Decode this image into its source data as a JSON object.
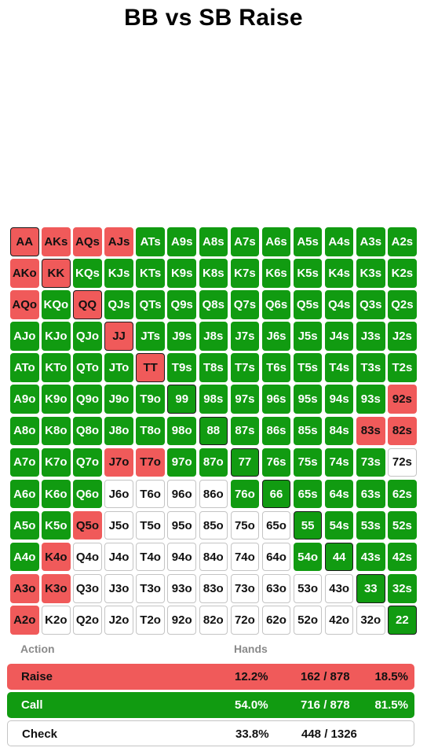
{
  "title": "BB vs SB Raise",
  "colors": {
    "raise": "#f05a5a",
    "call": "#119b11",
    "check": "#ffffff"
  },
  "grid": [
    [
      {
        "h": "AA",
        "a": "raise"
      },
      {
        "h": "AKs",
        "a": "raise"
      },
      {
        "h": "AQs",
        "a": "raise"
      },
      {
        "h": "AJs",
        "a": "raise"
      },
      {
        "h": "ATs",
        "a": "call"
      },
      {
        "h": "A9s",
        "a": "call"
      },
      {
        "h": "A8s",
        "a": "call"
      },
      {
        "h": "A7s",
        "a": "call"
      },
      {
        "h": "A6s",
        "a": "call"
      },
      {
        "h": "A5s",
        "a": "call"
      },
      {
        "h": "A4s",
        "a": "call"
      },
      {
        "h": "A3s",
        "a": "call"
      },
      {
        "h": "A2s",
        "a": "call"
      }
    ],
    [
      {
        "h": "AKo",
        "a": "raise"
      },
      {
        "h": "KK",
        "a": "raise"
      },
      {
        "h": "KQs",
        "a": "call"
      },
      {
        "h": "KJs",
        "a": "call"
      },
      {
        "h": "KTs",
        "a": "call"
      },
      {
        "h": "K9s",
        "a": "call"
      },
      {
        "h": "K8s",
        "a": "call"
      },
      {
        "h": "K7s",
        "a": "call"
      },
      {
        "h": "K6s",
        "a": "call"
      },
      {
        "h": "K5s",
        "a": "call"
      },
      {
        "h": "K4s",
        "a": "call"
      },
      {
        "h": "K3s",
        "a": "call"
      },
      {
        "h": "K2s",
        "a": "call"
      }
    ],
    [
      {
        "h": "AQo",
        "a": "raise"
      },
      {
        "h": "KQo",
        "a": "call"
      },
      {
        "h": "QQ",
        "a": "raise"
      },
      {
        "h": "QJs",
        "a": "call"
      },
      {
        "h": "QTs",
        "a": "call"
      },
      {
        "h": "Q9s",
        "a": "call"
      },
      {
        "h": "Q8s",
        "a": "call"
      },
      {
        "h": "Q7s",
        "a": "call"
      },
      {
        "h": "Q6s",
        "a": "call"
      },
      {
        "h": "Q5s",
        "a": "call"
      },
      {
        "h": "Q4s",
        "a": "call"
      },
      {
        "h": "Q3s",
        "a": "call"
      },
      {
        "h": "Q2s",
        "a": "call"
      }
    ],
    [
      {
        "h": "AJo",
        "a": "call"
      },
      {
        "h": "KJo",
        "a": "call"
      },
      {
        "h": "QJo",
        "a": "call"
      },
      {
        "h": "JJ",
        "a": "raise"
      },
      {
        "h": "JTs",
        "a": "call"
      },
      {
        "h": "J9s",
        "a": "call"
      },
      {
        "h": "J8s",
        "a": "call"
      },
      {
        "h": "J7s",
        "a": "call"
      },
      {
        "h": "J6s",
        "a": "call"
      },
      {
        "h": "J5s",
        "a": "call"
      },
      {
        "h": "J4s",
        "a": "call"
      },
      {
        "h": "J3s",
        "a": "call"
      },
      {
        "h": "J2s",
        "a": "call"
      }
    ],
    [
      {
        "h": "ATo",
        "a": "call"
      },
      {
        "h": "KTo",
        "a": "call"
      },
      {
        "h": "QTo",
        "a": "call"
      },
      {
        "h": "JTo",
        "a": "call"
      },
      {
        "h": "TT",
        "a": "raise"
      },
      {
        "h": "T9s",
        "a": "call"
      },
      {
        "h": "T8s",
        "a": "call"
      },
      {
        "h": "T7s",
        "a": "call"
      },
      {
        "h": "T6s",
        "a": "call"
      },
      {
        "h": "T5s",
        "a": "call"
      },
      {
        "h": "T4s",
        "a": "call"
      },
      {
        "h": "T3s",
        "a": "call"
      },
      {
        "h": "T2s",
        "a": "call"
      }
    ],
    [
      {
        "h": "A9o",
        "a": "call"
      },
      {
        "h": "K9o",
        "a": "call"
      },
      {
        "h": "Q9o",
        "a": "call"
      },
      {
        "h": "J9o",
        "a": "call"
      },
      {
        "h": "T9o",
        "a": "call"
      },
      {
        "h": "99",
        "a": "call"
      },
      {
        "h": "98s",
        "a": "call"
      },
      {
        "h": "97s",
        "a": "call"
      },
      {
        "h": "96s",
        "a": "call"
      },
      {
        "h": "95s",
        "a": "call"
      },
      {
        "h": "94s",
        "a": "call"
      },
      {
        "h": "93s",
        "a": "call"
      },
      {
        "h": "92s",
        "a": "raise"
      }
    ],
    [
      {
        "h": "A8o",
        "a": "call"
      },
      {
        "h": "K8o",
        "a": "call"
      },
      {
        "h": "Q8o",
        "a": "call"
      },
      {
        "h": "J8o",
        "a": "call"
      },
      {
        "h": "T8o",
        "a": "call"
      },
      {
        "h": "98o",
        "a": "call"
      },
      {
        "h": "88",
        "a": "call"
      },
      {
        "h": "87s",
        "a": "call"
      },
      {
        "h": "86s",
        "a": "call"
      },
      {
        "h": "85s",
        "a": "call"
      },
      {
        "h": "84s",
        "a": "call"
      },
      {
        "h": "83s",
        "a": "raise"
      },
      {
        "h": "82s",
        "a": "raise"
      }
    ],
    [
      {
        "h": "A7o",
        "a": "call"
      },
      {
        "h": "K7o",
        "a": "call"
      },
      {
        "h": "Q7o",
        "a": "call"
      },
      {
        "h": "J7o",
        "a": "raise"
      },
      {
        "h": "T7o",
        "a": "raise"
      },
      {
        "h": "97o",
        "a": "call"
      },
      {
        "h": "87o",
        "a": "call"
      },
      {
        "h": "77",
        "a": "call"
      },
      {
        "h": "76s",
        "a": "call"
      },
      {
        "h": "75s",
        "a": "call"
      },
      {
        "h": "74s",
        "a": "call"
      },
      {
        "h": "73s",
        "a": "call"
      },
      {
        "h": "72s",
        "a": "check"
      }
    ],
    [
      {
        "h": "A6o",
        "a": "call"
      },
      {
        "h": "K6o",
        "a": "call"
      },
      {
        "h": "Q6o",
        "a": "call"
      },
      {
        "h": "J6o",
        "a": "check"
      },
      {
        "h": "T6o",
        "a": "check"
      },
      {
        "h": "96o",
        "a": "check"
      },
      {
        "h": "86o",
        "a": "check"
      },
      {
        "h": "76o",
        "a": "call"
      },
      {
        "h": "66",
        "a": "call"
      },
      {
        "h": "65s",
        "a": "call"
      },
      {
        "h": "64s",
        "a": "call"
      },
      {
        "h": "63s",
        "a": "call"
      },
      {
        "h": "62s",
        "a": "call"
      }
    ],
    [
      {
        "h": "A5o",
        "a": "call"
      },
      {
        "h": "K5o",
        "a": "call"
      },
      {
        "h": "Q5o",
        "a": "raise"
      },
      {
        "h": "J5o",
        "a": "check"
      },
      {
        "h": "T5o",
        "a": "check"
      },
      {
        "h": "95o",
        "a": "check"
      },
      {
        "h": "85o",
        "a": "check"
      },
      {
        "h": "75o",
        "a": "check"
      },
      {
        "h": "65o",
        "a": "check"
      },
      {
        "h": "55",
        "a": "call"
      },
      {
        "h": "54s",
        "a": "call"
      },
      {
        "h": "53s",
        "a": "call"
      },
      {
        "h": "52s",
        "a": "call"
      }
    ],
    [
      {
        "h": "A4o",
        "a": "call"
      },
      {
        "h": "K4o",
        "a": "raise"
      },
      {
        "h": "Q4o",
        "a": "check"
      },
      {
        "h": "J4o",
        "a": "check"
      },
      {
        "h": "T4o",
        "a": "check"
      },
      {
        "h": "94o",
        "a": "check"
      },
      {
        "h": "84o",
        "a": "check"
      },
      {
        "h": "74o",
        "a": "check"
      },
      {
        "h": "64o",
        "a": "check"
      },
      {
        "h": "54o",
        "a": "call"
      },
      {
        "h": "44",
        "a": "call"
      },
      {
        "h": "43s",
        "a": "call"
      },
      {
        "h": "42s",
        "a": "call"
      }
    ],
    [
      {
        "h": "A3o",
        "a": "raise"
      },
      {
        "h": "K3o",
        "a": "raise"
      },
      {
        "h": "Q3o",
        "a": "check"
      },
      {
        "h": "J3o",
        "a": "check"
      },
      {
        "h": "T3o",
        "a": "check"
      },
      {
        "h": "93o",
        "a": "check"
      },
      {
        "h": "83o",
        "a": "check"
      },
      {
        "h": "73o",
        "a": "check"
      },
      {
        "h": "63o",
        "a": "check"
      },
      {
        "h": "53o",
        "a": "check"
      },
      {
        "h": "43o",
        "a": "check"
      },
      {
        "h": "33",
        "a": "call"
      },
      {
        "h": "32s",
        "a": "call"
      }
    ],
    [
      {
        "h": "A2o",
        "a": "raise"
      },
      {
        "h": "K2o",
        "a": "check"
      },
      {
        "h": "Q2o",
        "a": "check"
      },
      {
        "h": "J2o",
        "a": "check"
      },
      {
        "h": "T2o",
        "a": "check"
      },
      {
        "h": "92o",
        "a": "check"
      },
      {
        "h": "82o",
        "a": "check"
      },
      {
        "h": "72o",
        "a": "check"
      },
      {
        "h": "62o",
        "a": "check"
      },
      {
        "h": "52o",
        "a": "check"
      },
      {
        "h": "42o",
        "a": "check"
      },
      {
        "h": "32o",
        "a": "check"
      },
      {
        "h": "22",
        "a": "call"
      }
    ]
  ],
  "summary": {
    "header_action": "Action",
    "header_hands": "Hands",
    "rows": [
      {
        "action": "Raise",
        "percent": "12.2%",
        "hands": "162 / 878",
        "share": "18.5%"
      },
      {
        "action": "Call",
        "percent": "54.0%",
        "hands": "716 / 878",
        "share": "81.5%"
      },
      {
        "action": "Check",
        "percent": "33.8%",
        "hands": "448 / 1326",
        "share": ""
      }
    ]
  }
}
